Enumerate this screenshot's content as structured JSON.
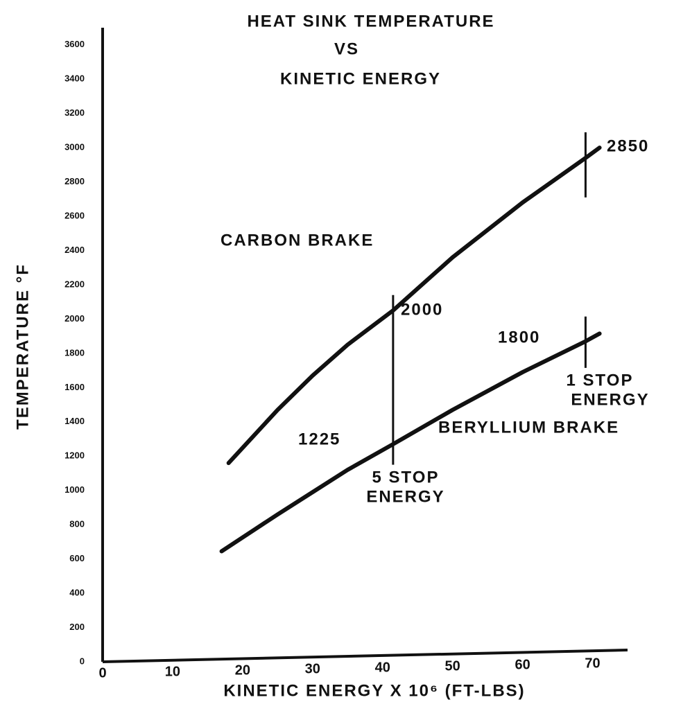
{
  "chart_data": {
    "type": "line",
    "title": [
      "HEAT SINK TEMPERATURE",
      "VS",
      "KINETIC ENERGY"
    ],
    "x_label": "KINETIC ENERGY X 10⁶ (FT-LBS)",
    "y_label": "TEMPERATURE °F",
    "xlim": [
      0,
      75
    ],
    "ylim": [
      0,
      3700
    ],
    "xticks": [
      0,
      10,
      20,
      30,
      40,
      50,
      60,
      70
    ],
    "yticks": [
      0,
      200,
      400,
      600,
      800,
      1000,
      1200,
      1400,
      1600,
      1800,
      2000,
      2200,
      2400,
      2600,
      2800,
      3000,
      3200,
      3400,
      3600
    ],
    "series": [
      {
        "name": "CARBON BRAKE",
        "color": "#111111",
        "x": [
          18,
          25,
          30,
          35,
          41.5,
          50,
          60,
          69,
          71
        ],
        "values": [
          1160,
          1470,
          1670,
          1850,
          2050,
          2360,
          2680,
          2940,
          3000
        ]
      },
      {
        "name": "BERYLLIUM BRAKE",
        "color": "#111111",
        "x": [
          17,
          25,
          30,
          35,
          41.5,
          50,
          60,
          69,
          71
        ],
        "values": [
          645,
          860,
          990,
          1120,
          1270,
          1470,
          1690,
          1870,
          1915
        ]
      }
    ],
    "markers": [
      {
        "x": 41.5,
        "ymin": 1150,
        "ymax": 2140
      },
      {
        "x": 69,
        "ymin": 2710,
        "ymax": 3090
      },
      {
        "x": 69,
        "ymin": 1715,
        "ymax": 2015
      }
    ],
    "annotations": [
      "2850",
      "2000",
      "1800",
      "1225",
      "5 STOP",
      "ENERGY",
      "1 STOP",
      "ENERGY"
    ]
  }
}
